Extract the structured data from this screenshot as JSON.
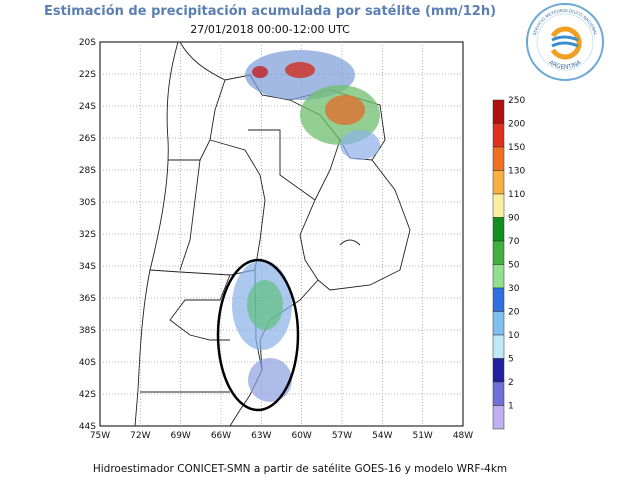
{
  "header": {
    "title": "Estimación de precipitación acumulada por satélite (mm/12h)",
    "subtitle": "27/01/2018  00:00-12:00 UTC"
  },
  "logo": {
    "top_text": "SERVICIO METEOROLÓGICO NACIONAL",
    "bottom_text": "ARGENTINA"
  },
  "map": {
    "lat_labels": [
      "20S",
      "22S",
      "24S",
      "26S",
      "28S",
      "30S",
      "32S",
      "34S",
      "36S",
      "38S",
      "40S",
      "42S",
      "44S"
    ],
    "lon_labels": [
      "75W",
      "72W",
      "69W",
      "66W",
      "63W",
      "60W",
      "57W",
      "54W",
      "51W",
      "48W"
    ]
  },
  "colorbar": {
    "labels": [
      "250",
      "200",
      "150",
      "130",
      "110",
      "90",
      "70",
      "50",
      "30",
      "20",
      "10",
      "5",
      "2",
      "1"
    ]
  },
  "footer": "Hidroestimador CONICET-SMN a partir de satélite GOES-16 y modelo WRF-4km"
}
